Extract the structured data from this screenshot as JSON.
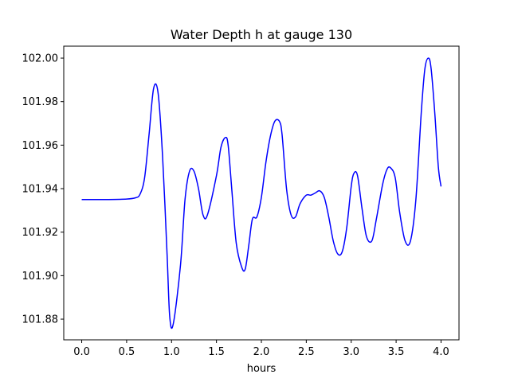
{
  "chart_data": {
    "type": "line",
    "title": "Water Depth h at gauge 130",
    "xlabel": "hours",
    "ylabel": "",
    "xlim": [
      -0.2,
      4.2
    ],
    "ylim": [
      101.8705,
      102.0055
    ],
    "x_ticks": [
      0.0,
      0.5,
      1.0,
      1.5,
      2.0,
      2.5,
      3.0,
      3.5,
      4.0
    ],
    "x_tick_labels": [
      "0.0",
      "0.5",
      "1.0",
      "1.5",
      "2.0",
      "2.5",
      "3.0",
      "3.5",
      "4.0"
    ],
    "y_ticks": [
      101.88,
      101.9,
      101.92,
      101.94,
      101.96,
      101.98,
      102.0
    ],
    "y_tick_labels": [
      "101.88",
      "101.90",
      "101.92",
      "101.94",
      "101.96",
      "101.98",
      "102.00"
    ],
    "grid": false,
    "series": [
      {
        "color": "#0000ff",
        "x": [
          0.0,
          0.3,
          0.5,
          0.6,
          0.65,
          0.7,
          0.75,
          0.8,
          0.85,
          0.9,
          0.95,
          0.98,
          1.02,
          1.1,
          1.15,
          1.2,
          1.25,
          1.3,
          1.35,
          1.4,
          1.5,
          1.55,
          1.6,
          1.63,
          1.67,
          1.72,
          1.78,
          1.82,
          1.86,
          1.9,
          1.95,
          2.0,
          2.05,
          2.1,
          2.15,
          2.2,
          2.23,
          2.28,
          2.33,
          2.38,
          2.43,
          2.5,
          2.55,
          2.6,
          2.65,
          2.7,
          2.75,
          2.8,
          2.85,
          2.9,
          2.95,
          3.0,
          3.03,
          3.07,
          3.12,
          3.17,
          3.23,
          3.28,
          3.35,
          3.4,
          3.44,
          3.49,
          3.54,
          3.6,
          3.66,
          3.72,
          3.78,
          3.82,
          3.86,
          3.89,
          3.93,
          3.97,
          4.0
        ],
        "y": [
          101.935,
          101.935,
          101.9352,
          101.9358,
          101.9375,
          101.945,
          101.965,
          101.986,
          101.984,
          101.955,
          101.91,
          101.881,
          101.878,
          101.905,
          101.935,
          101.948,
          101.948,
          101.94,
          101.928,
          101.928,
          101.946,
          101.959,
          101.9635,
          101.96,
          101.94,
          101.915,
          101.904,
          101.903,
          101.914,
          101.926,
          101.927,
          101.936,
          101.952,
          101.964,
          101.971,
          101.971,
          101.965,
          101.94,
          101.928,
          101.927,
          101.933,
          101.937,
          101.937,
          101.938,
          101.939,
          101.936,
          101.927,
          101.916,
          101.91,
          101.911,
          101.922,
          101.941,
          101.947,
          101.946,
          101.931,
          101.918,
          101.916,
          101.926,
          101.942,
          101.949,
          101.9495,
          101.945,
          101.929,
          101.916,
          101.916,
          101.935,
          101.975,
          101.995,
          102.0,
          101.995,
          101.975,
          101.95,
          101.941
        ]
      }
    ]
  }
}
